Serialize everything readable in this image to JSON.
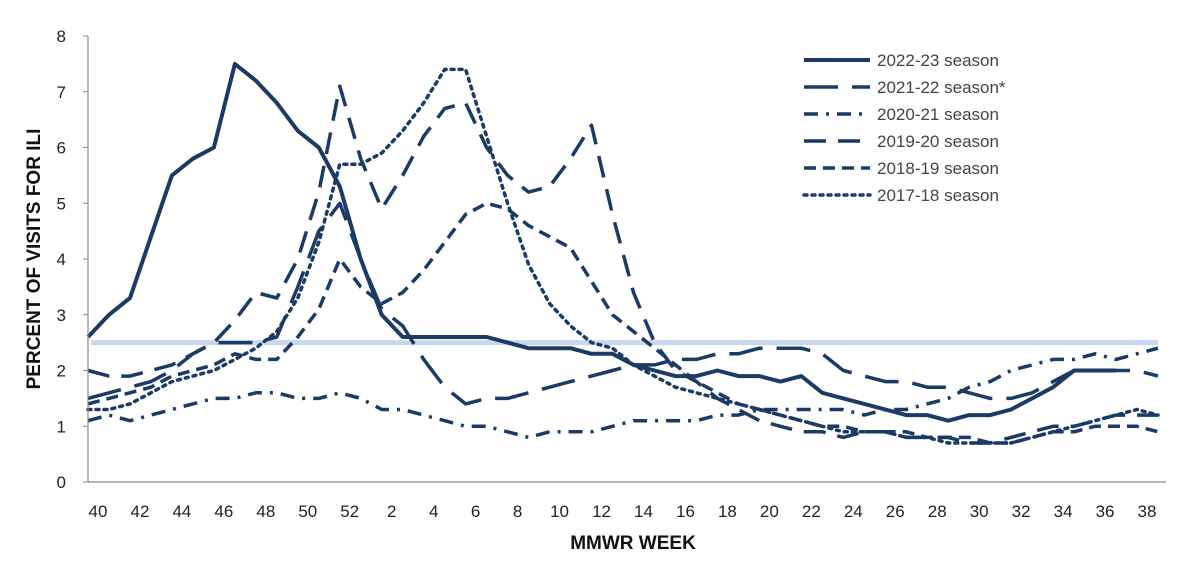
{
  "chart_data": {
    "type": "line",
    "title": "",
    "xlabel": "MMWR WEEK",
    "ylabel": "PERCENT OF VISITS FOR ILI",
    "ylim": [
      0,
      8
    ],
    "yticks": [
      "0",
      "1",
      "2",
      "3",
      "4",
      "5",
      "6",
      "7",
      "8"
    ],
    "x": [
      "40",
      "41",
      "42",
      "43",
      "44",
      "45",
      "46",
      "47",
      "48",
      "49",
      "50",
      "51",
      "52",
      "1",
      "2",
      "3",
      "4",
      "5",
      "6",
      "7",
      "8",
      "9",
      "10",
      "11",
      "12",
      "13",
      "14",
      "15",
      "16",
      "17",
      "18",
      "19",
      "20",
      "21",
      "22",
      "23",
      "24",
      "25",
      "26",
      "27",
      "28",
      "29",
      "30",
      "31",
      "32",
      "33",
      "34",
      "35",
      "36",
      "37",
      "38",
      "39"
    ],
    "xtick_labels": [
      "40",
      "42",
      "44",
      "46",
      "48",
      "50",
      "52",
      "2",
      "4",
      "6",
      "8",
      "10",
      "12",
      "14",
      "16",
      "18",
      "20",
      "22",
      "24",
      "26",
      "28",
      "30",
      "32",
      "34",
      "36",
      "38"
    ],
    "grid": false,
    "legend_position": "top-right",
    "baseline": {
      "value": 2.5,
      "color": "#c9d7ee"
    },
    "line_color": "#1b3a66",
    "series": [
      {
        "name": "2022-23 season",
        "style": "solid",
        "values": [
          2.6,
          3.0,
          3.3,
          4.4,
          5.5,
          5.8,
          6.0,
          7.5,
          7.2,
          6.8,
          6.3,
          6.0,
          5.3,
          4.0,
          3.0,
          2.6,
          2.6,
          2.6,
          2.6,
          2.6,
          2.5,
          2.4,
          2.4,
          2.4,
          2.3,
          2.3,
          2.1,
          2.0,
          1.9,
          1.9,
          2.0,
          1.9,
          1.9,
          1.8,
          1.9,
          1.6,
          1.5,
          1.4,
          1.3,
          1.2,
          1.2,
          1.1,
          1.2,
          1.2,
          1.3,
          1.5,
          1.7,
          2.0,
          2.0,
          2.0,
          null,
          null
        ]
      },
      {
        "name": "2021-22 season*",
        "style": "longdash",
        "values": [
          1.5,
          1.6,
          1.7,
          1.8,
          2.0,
          2.3,
          2.5,
          2.5,
          2.5,
          2.6,
          3.5,
          4.5,
          5.0,
          4.0,
          3.1,
          2.8,
          2.2,
          1.7,
          1.4,
          1.5,
          1.5,
          1.6,
          1.7,
          1.8,
          1.9,
          2.0,
          2.1,
          2.1,
          2.2,
          2.2,
          2.3,
          2.3,
          2.4,
          2.4,
          2.4,
          2.3,
          2.0,
          1.9,
          1.8,
          1.8,
          1.7,
          1.7,
          1.6,
          1.5,
          1.5,
          1.6,
          1.8,
          2.0,
          2.0,
          2.0,
          2.0,
          1.9
        ]
      },
      {
        "name": "2020-21 season",
        "style": "dashdot",
        "values": [
          1.1,
          1.2,
          1.1,
          1.2,
          1.3,
          1.4,
          1.5,
          1.5,
          1.6,
          1.6,
          1.5,
          1.5,
          1.6,
          1.5,
          1.3,
          1.3,
          1.2,
          1.1,
          1.0,
          1.0,
          0.9,
          0.8,
          0.9,
          0.9,
          0.9,
          1.0,
          1.1,
          1.1,
          1.1,
          1.1,
          1.2,
          1.2,
          1.3,
          1.3,
          1.3,
          1.3,
          1.3,
          1.2,
          1.3,
          1.3,
          1.4,
          1.5,
          1.7,
          1.8,
          2.0,
          2.1,
          2.2,
          2.2,
          2.3,
          2.2,
          2.3,
          2.4
        ]
      },
      {
        "name": "2019-20 season",
        "style": "dash",
        "values": [
          2.0,
          1.9,
          1.9,
          2.0,
          2.1,
          2.3,
          2.5,
          2.9,
          3.4,
          3.3,
          4.0,
          5.2,
          7.1,
          5.8,
          4.9,
          5.5,
          6.2,
          6.7,
          6.8,
          6.0,
          5.5,
          5.2,
          5.3,
          5.8,
          6.4,
          4.8,
          3.4,
          2.5,
          2.0,
          1.8,
          1.5,
          1.3,
          1.1,
          1.0,
          0.9,
          0.9,
          0.8,
          0.9,
          0.9,
          0.8,
          0.8,
          0.8,
          0.7,
          0.7,
          0.8,
          0.9,
          1.0,
          1.0,
          1.1,
          1.2,
          1.2,
          1.2
        ]
      },
      {
        "name": "2018-19 season",
        "style": "shortdash",
        "values": [
          1.4,
          1.5,
          1.6,
          1.7,
          1.9,
          2.0,
          2.1,
          2.3,
          2.2,
          2.2,
          2.6,
          3.1,
          4.0,
          3.5,
          3.2,
          3.4,
          3.8,
          4.3,
          4.8,
          5.0,
          4.9,
          4.6,
          4.4,
          4.2,
          3.6,
          3.0,
          2.7,
          2.4,
          2.1,
          1.8,
          1.6,
          1.4,
          1.3,
          1.2,
          1.1,
          1.0,
          1.0,
          0.9,
          0.9,
          0.9,
          0.8,
          0.8,
          0.8,
          0.7,
          0.7,
          0.8,
          0.9,
          0.9,
          1.0,
          1.0,
          1.0,
          0.9
        ]
      },
      {
        "name": "2017-18 season",
        "style": "dot",
        "values": [
          1.3,
          1.3,
          1.4,
          1.6,
          1.8,
          1.9,
          2.0,
          2.2,
          2.4,
          2.7,
          3.3,
          4.3,
          5.7,
          5.7,
          5.9,
          6.3,
          6.8,
          7.4,
          7.4,
          6.2,
          5.0,
          3.9,
          3.2,
          2.8,
          2.5,
          2.4,
          2.1,
          1.9,
          1.7,
          1.6,
          1.5,
          1.4,
          1.3,
          1.2,
          1.1,
          1.0,
          0.9,
          0.9,
          0.9,
          0.8,
          0.8,
          0.7,
          0.7,
          0.7,
          0.7,
          0.8,
          0.9,
          1.0,
          1.1,
          1.2,
          1.3,
          1.2
        ]
      }
    ]
  }
}
